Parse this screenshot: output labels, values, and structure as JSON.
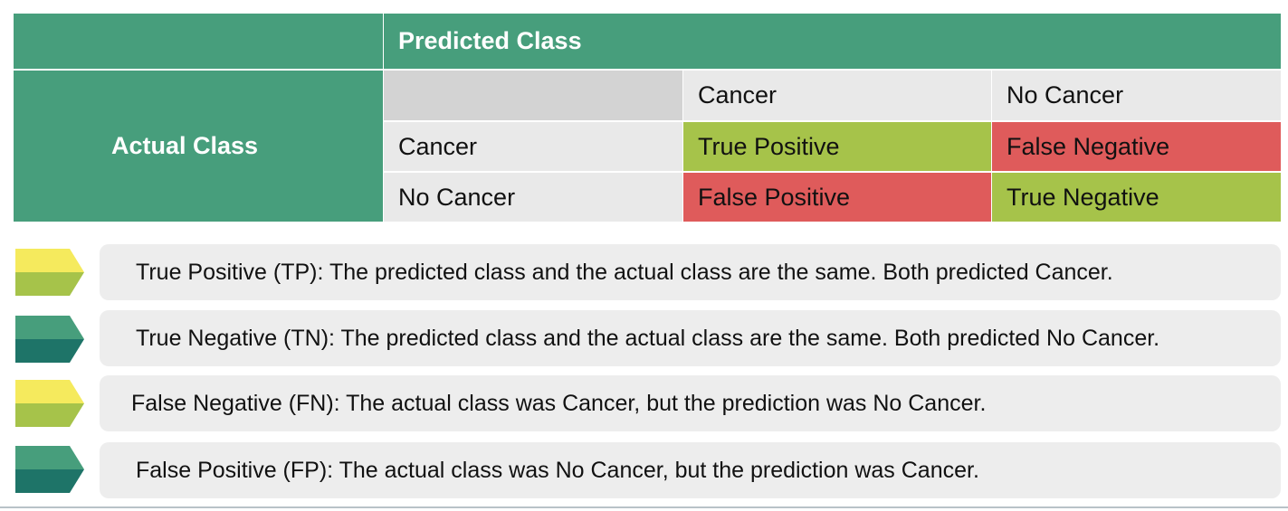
{
  "table": {
    "predicted_header": "Predicted Class",
    "actual_header": "Actual Class",
    "col_headers": [
      "Cancer",
      "No Cancer"
    ],
    "rows": [
      {
        "label": "Cancer",
        "cells": [
          "True Positive",
          "False Negative"
        ]
      },
      {
        "label": "No Cancer",
        "cells": [
          "False Positive",
          "True Negative"
        ]
      }
    ]
  },
  "legend": [
    {
      "text": "True Positive (TP): The predicted class and the actual class are the same. Both predicted Cancer.",
      "icon": "yellow-green-arrow-icon"
    },
    {
      "text": "True Negative (TN): The predicted class and the actual class are the same. Both predicted No Cancer.",
      "icon": "teal-arrow-icon"
    },
    {
      "text": "False Negative (FN): The actual class was Cancer, but the prediction was No Cancer.",
      "icon": "yellow-green-arrow-icon"
    },
    {
      "text": "False Positive (FP): The actual class was No Cancer, but the prediction was Cancer.",
      "icon": "teal-arrow-icon"
    }
  ],
  "colors": {
    "header_green": "#479e7c",
    "true_lime": "#a6c34a",
    "false_red": "#df5b5b",
    "neutral_grey": "#e9e9e9",
    "arrow_yellow": "#f5ea5d",
    "arrow_olive": "#a6c34a",
    "arrow_teal_light": "#479e7c",
    "arrow_teal_dark": "#1e7468"
  }
}
